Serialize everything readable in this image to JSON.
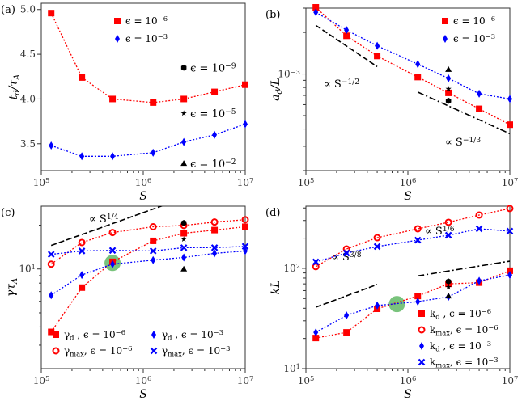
{
  "chart_data": [
    {
      "panel": "(a)",
      "type": "line",
      "xlog": true,
      "ylog": false,
      "xlim": [
        100000,
        10000000
      ],
      "ylim": [
        3.2,
        5.07
      ],
      "xlabel": "S",
      "ylabel": "t_{d}/τ_{A}",
      "xticks": [
        {
          "v": 100000,
          "label": "10^{5}"
        },
        {
          "v": 1000000,
          "label": "10^{6}"
        },
        {
          "v": 10000000,
          "label": "10^{7}"
        }
      ],
      "yticks": [
        {
          "v": 3.5,
          "label": "3.5"
        },
        {
          "v": 4.0,
          "label": "4.0"
        },
        {
          "v": 4.5,
          "label": "4.5"
        },
        {
          "v": 5.0,
          "label": "5.0"
        }
      ],
      "x": [
        125000,
        250000,
        500000,
        1250000,
        2500000,
        5000000,
        10000000
      ],
      "series": [
        {
          "name": "ϵ = 10^{−6}",
          "color": "#ff0000",
          "marker": "square",
          "values": [
            4.96,
            4.24,
            4.0,
            3.96,
            4.0,
            4.08,
            4.16
          ]
        },
        {
          "name": "ϵ = 10^{−3}",
          "color": "#0000ff",
          "marker": "diamond",
          "values": [
            3.48,
            3.36,
            3.36,
            3.4,
            3.52,
            3.6,
            3.72
          ]
        }
      ],
      "points": [
        {
          "x": 2500000,
          "y": 4.35,
          "marker": "hexagon",
          "label": "ϵ = 10^{−9}"
        },
        {
          "x": 2500000,
          "y": 3.84,
          "marker": "star",
          "label": "ϵ = 10^{−5}"
        },
        {
          "x": 2500000,
          "y": 3.28,
          "marker": "triangle",
          "label": "ϵ = 10^{−2}"
        }
      ],
      "reflines": [],
      "highlights": [],
      "legend": "upper-center"
    },
    {
      "panel": "(b)",
      "type": "line",
      "xlog": true,
      "ylog": true,
      "xlim": [
        100000,
        10000000
      ],
      "ylim": [
        0.0002,
        0.003
      ],
      "xlabel": "S",
      "ylabel": "a_{d}/L",
      "xticks": [
        {
          "v": 100000,
          "label": "10^{5}"
        },
        {
          "v": 1000000,
          "label": "10^{6}"
        },
        {
          "v": 10000000,
          "label": "10^{7}"
        }
      ],
      "yticks": [
        {
          "v": 0.001,
          "label": "10^{−3}"
        }
      ],
      "x": [
        125000,
        250000,
        500000,
        1250000,
        2500000,
        5000000,
        10000000
      ],
      "series": [
        {
          "name": "ϵ = 10^{−6}",
          "color": "#ff0000",
          "marker": "square",
          "values": [
            0.00304,
            0.00189,
            0.00135,
            0.00095,
            0.00073,
            0.00056,
            0.00043
          ]
        },
        {
          "name": "ϵ = 10^{−3}",
          "color": "#0000ff",
          "marker": "diamond",
          "values": [
            0.0028,
            0.00208,
            0.0016,
            0.00118,
            0.00093,
            0.00072,
            0.00066
          ]
        }
      ],
      "points": [
        {
          "x": 2500000,
          "y": 0.00108,
          "marker": "triangle"
        },
        {
          "x": 2500000,
          "y": 0.00078,
          "marker": "star"
        },
        {
          "x": 2500000,
          "y": 0.00064,
          "marker": "hexagon"
        }
      ],
      "reflines": [
        {
          "label": "∝ S^{−1/2}",
          "x": [
            125000,
            500000
          ],
          "y": [
            0.00225,
            0.00113
          ],
          "style": "dashed"
        },
        {
          "label": "∝ S^{−1/3}",
          "x": [
            1250000,
            10000000
          ],
          "y": [
            0.00074,
            0.00037
          ],
          "style": "dashdot"
        }
      ],
      "highlights": [],
      "legend": "upper-right"
    },
    {
      "panel": "(c)",
      "type": "line",
      "xlog": true,
      "ylog": true,
      "xlim": [
        100000,
        10000000
      ],
      "ylim": [
        2.07,
        27
      ],
      "xlabel": "S",
      "ylabel": "γτ_{A}",
      "xticks": [
        {
          "v": 100000,
          "label": "10^{5}"
        },
        {
          "v": 1000000,
          "label": "10^{6}"
        },
        {
          "v": 10000000,
          "label": "10^{7}"
        }
      ],
      "yticks": [
        {
          "v": 10,
          "label": "10^{1}"
        }
      ],
      "x": [
        125000,
        250000,
        500000,
        1250000,
        2500000,
        5000000,
        10000000
      ],
      "series": [
        {
          "name": "γ_{d}    , ϵ = 10^{−6}",
          "color": "#ff0000",
          "marker": "square",
          "values": [
            3.7,
            7.45,
            11.2,
            15.6,
            17.6,
            18.5,
            19.5
          ]
        },
        {
          "name": "γ_{max}, ϵ = 10^{−6}",
          "color": "#ff0000",
          "marker": "circle",
          "values": [
            10.8,
            15.2,
            17.8,
            19.5,
            19.9,
            21,
            21.8
          ]
        },
        {
          "name": "γ_{d}    , ϵ = 10^{−3}",
          "color": "#0000ff",
          "marker": "diamond",
          "values": [
            6.6,
            9.1,
            10.8,
            11.5,
            12,
            12.8,
            13.3
          ]
        },
        {
          "name": "γ_{max}, ϵ = 10^{−3}",
          "color": "#0000ff",
          "marker": "x",
          "values": [
            12.6,
            13.3,
            13.4,
            13.3,
            14,
            14,
            14.3
          ]
        }
      ],
      "points": [
        {
          "x": 2500000,
          "y": 20.7,
          "marker": "hexagon"
        },
        {
          "x": 2500000,
          "y": 16,
          "marker": "star"
        },
        {
          "x": 2500000,
          "y": 10,
          "marker": "triangle"
        }
      ],
      "reflines": [
        {
          "label": "∝ S^{1/4}",
          "x": [
            125000,
            10000000
          ],
          "y": [
            14.5,
            43.4
          ],
          "style": "dashed"
        }
      ],
      "highlights": [
        {
          "x": 500000,
          "y": 11,
          "color": "#4caf50"
        }
      ],
      "legend": "lower-center-2col"
    },
    {
      "panel": "(d)",
      "type": "line",
      "xlog": true,
      "ylog": true,
      "xlim": [
        100000,
        10000000
      ],
      "ylim": [
        10,
        417
      ],
      "xlabel": "S",
      "ylabel": "kL",
      "xticks": [
        {
          "v": 100000,
          "label": "10^{5}"
        },
        {
          "v": 1000000,
          "label": "10^{6}"
        },
        {
          "v": 10000000,
          "label": "10^{7}"
        }
      ],
      "yticks": [
        {
          "v": 10,
          "label": "10^{1}"
        },
        {
          "v": 100,
          "label": "10^{2}"
        }
      ],
      "x": [
        125000,
        250000,
        500000,
        1250000,
        2500000,
        5000000,
        10000000
      ],
      "series": [
        {
          "name": "k_{d}    , ϵ = 10^{−6}",
          "color": "#ff0000",
          "marker": "square",
          "values": [
            20.2,
            23,
            39.5,
            53,
            70,
            72,
            94.7
          ]
        },
        {
          "name": "k_{max}, ϵ = 10^{−6}",
          "color": "#ff0000",
          "marker": "circle",
          "values": [
            104,
            156,
            202,
            248,
            288,
            340,
            395
          ]
        },
        {
          "name": "k_{d}    , ϵ = 10^{−3}",
          "color": "#0000ff",
          "marker": "diamond",
          "values": [
            23,
            34,
            42.6,
            46.6,
            52,
            75,
            86
          ]
        },
        {
          "name": "k_{max}, ϵ = 10^{−3}",
          "color": "#0000ff",
          "marker": "x",
          "values": [
            116,
            142,
            165,
            191,
            214,
            248,
            235
          ]
        }
      ],
      "points": [
        {
          "x": 2500000,
          "y": 74,
          "marker": "hexagon"
        },
        {
          "x": 2500000,
          "y": 65,
          "marker": "star"
        },
        {
          "x": 2500000,
          "y": 53,
          "marker": "triangle"
        }
      ],
      "reflines": [
        {
          "label": "∝ S^{3/8}",
          "x": [
            125000,
            500000
          ],
          "y": [
            41,
            69
          ],
          "style": "dashed"
        },
        {
          "label": "∝ S^{1/6}",
          "x": [
            1250000,
            10000000
          ],
          "y": [
            84,
            118
          ],
          "style": "dashdot"
        }
      ],
      "highlights": [
        {
          "x": 780000,
          "y": 44,
          "color": "#4caf50"
        }
      ],
      "legend": "lower-right"
    }
  ]
}
